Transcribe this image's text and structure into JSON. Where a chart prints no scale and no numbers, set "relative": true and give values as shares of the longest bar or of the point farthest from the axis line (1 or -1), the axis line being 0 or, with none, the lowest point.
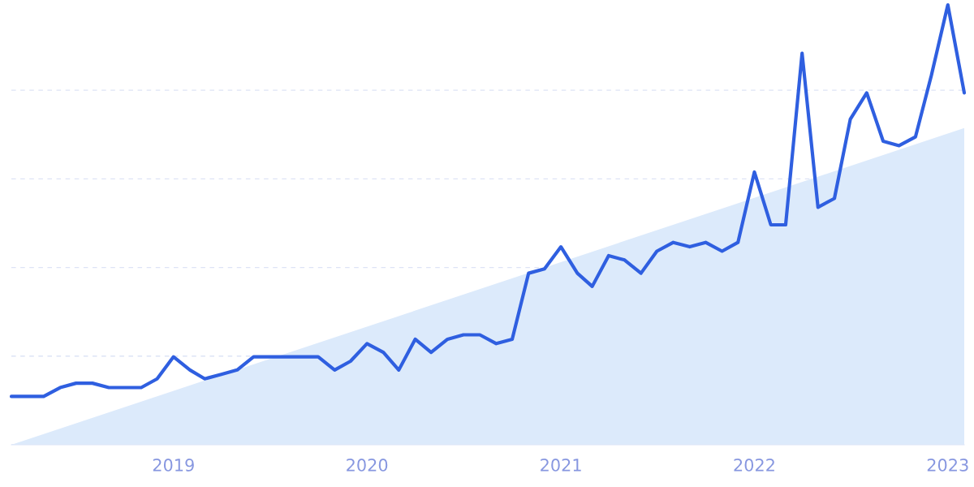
{
  "chart_data": {
    "type": "line",
    "relative": true,
    "grid": "y",
    "xlim": [
      "2018-03",
      "2023-02"
    ],
    "xticks": [
      "2019",
      "2020",
      "2021",
      "2022",
      "2023"
    ],
    "series": [
      {
        "type": "area",
        "color": "#dceafb",
        "x": [
          "2018-03",
          "2023-02"
        ],
        "values": [
          0,
          0.72
        ]
      },
      {
        "color": "#2f5fe0",
        "x": [
          "2018-03",
          "2018-04",
          "2018-05",
          "2018-06",
          "2018-07",
          "2018-08",
          "2018-09",
          "2018-10",
          "2018-11",
          "2018-12",
          "2019-01",
          "2019-02",
          "2019-03",
          "2019-04",
          "2019-05",
          "2019-06",
          "2019-07",
          "2019-08",
          "2019-09",
          "2019-10",
          "2019-11",
          "2019-12",
          "2020-01",
          "2020-02",
          "2020-03",
          "2020-04",
          "2020-05",
          "2020-06",
          "2020-07",
          "2020-08",
          "2020-09",
          "2020-10",
          "2020-11",
          "2020-12",
          "2021-01",
          "2021-02",
          "2021-03",
          "2021-04",
          "2021-05",
          "2021-06",
          "2021-07",
          "2021-08",
          "2021-09",
          "2021-10",
          "2021-11",
          "2021-12",
          "2022-01",
          "2022-02",
          "2022-03",
          "2022-04",
          "2022-05",
          "2022-06",
          "2022-07",
          "2022-08",
          "2022-09",
          "2022-10",
          "2022-11",
          "2022-12",
          "2023-01",
          "2023-02"
        ],
        "values": [
          0.11,
          0.11,
          0.11,
          0.13,
          0.14,
          0.14,
          0.13,
          0.13,
          0.13,
          0.15,
          0.2,
          0.17,
          0.15,
          0.16,
          0.17,
          0.2,
          0.2,
          0.2,
          0.2,
          0.2,
          0.17,
          0.19,
          0.23,
          0.21,
          0.17,
          0.24,
          0.21,
          0.24,
          0.25,
          0.25,
          0.23,
          0.24,
          0.39,
          0.4,
          0.45,
          0.39,
          0.36,
          0.43,
          0.42,
          0.39,
          0.44,
          0.46,
          0.45,
          0.46,
          0.44,
          0.46,
          0.62,
          0.5,
          0.5,
          0.89,
          0.54,
          0.56,
          0.74,
          0.8,
          0.69,
          0.68,
          0.7,
          0.84,
          1,
          0.8
        ]
      }
    ]
  }
}
